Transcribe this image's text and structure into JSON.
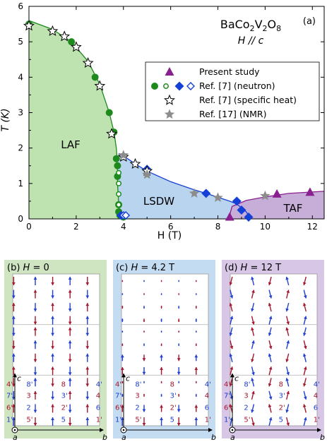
{
  "colors": {
    "laf": "#bfe3b0",
    "lsdw": "#b8d4ee",
    "taf": "#c7aed9",
    "green": "#1e8a1e",
    "blue": "#1540d6",
    "purple": "#8a1f8f",
    "grey": "#8c8c8c",
    "red_arrow": "#a3172e",
    "blue_arrow": "#1f3fd0",
    "panel_b_bg": "#cfe5c2",
    "panel_c_bg": "#c3dcf2",
    "panel_d_bg": "#d8c6e6"
  },
  "chart_data": {
    "type": "scatter",
    "title": "BaCo2V2O8",
    "subtitle": "H // c",
    "panel_label": "(a)",
    "xlabel": "H (T)",
    "ylabel": "T (K)",
    "xlim": [
      0,
      12.5
    ],
    "ylim": [
      0,
      6
    ],
    "xticks": [
      "0",
      "2",
      "4",
      "6",
      "8",
      "10",
      "12"
    ],
    "yticks": [
      "0",
      "1",
      "2",
      "3",
      "4",
      "5",
      "6"
    ],
    "phases": [
      "LAF",
      "LSDW",
      "TAF"
    ],
    "legend": {
      "placement": "right",
      "entries": [
        {
          "marker": "purple-triangle",
          "label": "Present study"
        },
        {
          "marker": "green-circle-blue-diamond",
          "label": "Ref. [7] (neutron)"
        },
        {
          "marker": "open-star",
          "label": "Ref. [7] (specific heat)"
        },
        {
          "marker": "grey-star",
          "label": "Ref. [17] (NMR)"
        }
      ]
    },
    "series": [
      {
        "name": "Present study",
        "marker": "triangle",
        "x": [
          8.5,
          10.5,
          11.9
        ],
        "y": [
          0.05,
          0.7,
          0.75
        ]
      },
      {
        "name": "Ref. [7] (neutron)",
        "marker": "filled-circle",
        "x": [
          0,
          1.8,
          2.8,
          3.4,
          3.6,
          3.7,
          3.75,
          3.75,
          3.8,
          3.8,
          3.85,
          4.0
        ],
        "y": [
          5.5,
          5.0,
          4.0,
          3.0,
          2.45,
          1.7,
          1.5,
          1.2,
          0.4,
          0.2,
          0.1,
          0.05
        ]
      },
      {
        "name": "Ref. [7] (neutron)",
        "marker": "open-circle",
        "x": [
          3.8,
          3.8,
          3.8,
          3.8
        ],
        "y": [
          1.3,
          1.0,
          0.7,
          0.4
        ]
      },
      {
        "name": "Ref. [7] (neutron)",
        "marker": "filled-diamond",
        "x": [
          3.9,
          5.0,
          7.5,
          8.8,
          9.0,
          9.3
        ],
        "y": [
          0.1,
          1.4,
          0.72,
          0.5,
          0.25,
          0.05
        ]
      },
      {
        "name": "Ref. [7] (neutron)",
        "marker": "open-diamond",
        "x": [
          4.0,
          4.1
        ],
        "y": [
          0.1,
          0.1
        ]
      },
      {
        "name": "Ref. [7] (specific heat)",
        "marker": "open-star",
        "x": [
          0,
          1.0,
          1.5,
          2.0,
          2.5,
          3.0,
          3.5,
          4.0,
          4.5,
          5.0
        ],
        "y": [
          5.45,
          5.3,
          5.15,
          4.85,
          4.4,
          3.75,
          2.4,
          1.75,
          1.55,
          1.35
        ]
      },
      {
        "name": "Ref. [17] (NMR)",
        "marker": "grey-star",
        "x": [
          4.0,
          5.0,
          7.0,
          8.0,
          10.0
        ],
        "y": [
          1.8,
          1.25,
          0.72,
          0.6,
          0.65
        ]
      }
    ]
  },
  "panels": [
    {
      "label": "(b) ",
      "field_var": "H",
      "field_val": " = 0",
      "key": "b"
    },
    {
      "label": "(c) ",
      "field_var": "H",
      "field_val": " = 4.2 T",
      "key": "c"
    },
    {
      "label": "(d) ",
      "field_var": "H",
      "field_val": " = 12 T",
      "key": "d"
    }
  ],
  "site_labels": {
    "left_column": [
      "4'",
      "7'",
      "6'",
      "1'"
    ],
    "inner_row1": [
      "8'",
      "8",
      "4'"
    ],
    "inner_row2": [
      "3",
      "3'",
      "4"
    ],
    "inner_row3": [
      "2",
      "2'",
      "6"
    ],
    "inner_row4": [
      "5'",
      "5",
      "1'"
    ],
    "axis_a": "a",
    "axis_b": "b",
    "axis_c": "c"
  }
}
